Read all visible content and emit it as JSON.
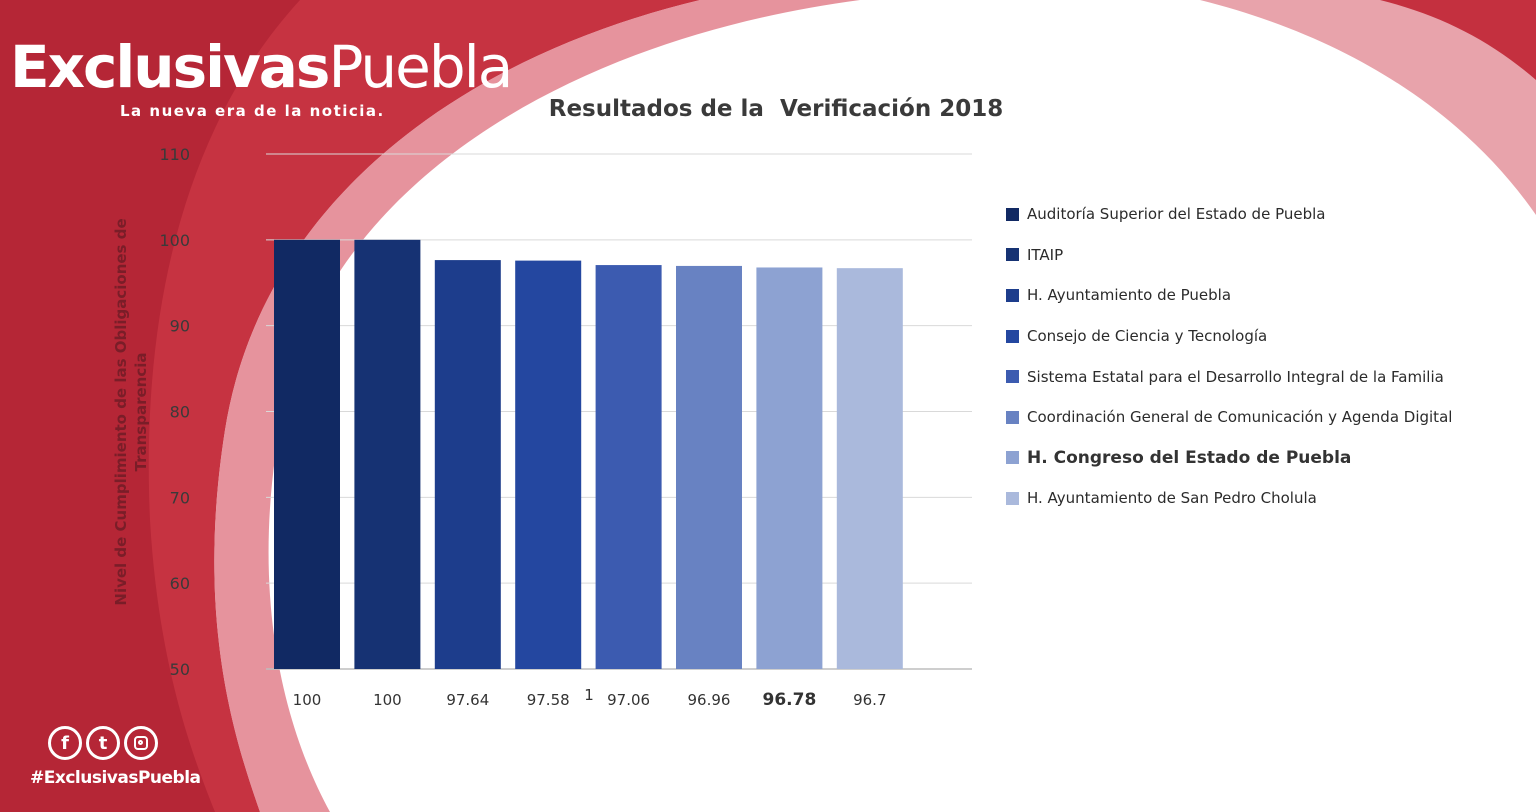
{
  "brand": {
    "name_bold": "Exclusivas",
    "name_light": "Puebla",
    "tagline": "La nueva era de la noticia.",
    "hashtag": "#ExclusivasPuebla",
    "social_icons": [
      "facebook-icon",
      "twitter-icon",
      "instagram-icon"
    ],
    "colors": {
      "primary_red": "#c0303f",
      "light_red": "#e2848e"
    }
  },
  "chart_data": {
    "type": "bar",
    "title": "Resultados de la  Verificación 2018",
    "ylabel": "Nivel de Cumplimiento de las Obligaciones de Transparencia",
    "xlabel": "",
    "ylim": [
      50,
      110
    ],
    "yticks": [
      50,
      60,
      70,
      80,
      90,
      100,
      110
    ],
    "grid": true,
    "legend_position": "right",
    "x_tick_label": "1",
    "series": [
      {
        "name": "Auditoría Superior del Estado de Puebla",
        "value": 100,
        "label": "100",
        "color": "#112963"
      },
      {
        "name": "ITAIP",
        "value": 100,
        "label": "100",
        "color": "#163273"
      },
      {
        "name": "H. Ayuntamiento de Puebla",
        "value": 97.64,
        "label": "97.64",
        "color": "#1d3d8c"
      },
      {
        "name": "Consejo de Ciencia y Tecnología",
        "value": 97.58,
        "label": "97.58",
        "color": "#2447a0"
      },
      {
        "name": "Sistema Estatal para el Desarrollo Integral de la Familia",
        "value": 97.06,
        "label": "97.06",
        "color": "#3c5bb0"
      },
      {
        "name": "Coordinación General de Comunicación y Agenda Digital",
        "value": 96.96,
        "label": "96.96",
        "color": "#6882c2"
      },
      {
        "name": "H. Congreso del Estado de Puebla",
        "value": 96.78,
        "label": "96.78",
        "color": "#8da2d2"
      },
      {
        "name": "H. Ayuntamiento de San Pedro Cholula",
        "value": 96.7,
        "label": "96.7",
        "color": "#aab9dc"
      }
    ]
  }
}
